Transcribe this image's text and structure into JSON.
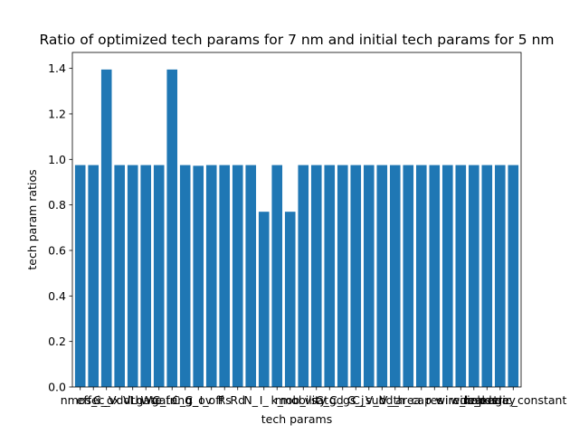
{
  "chart_data": {
    "type": "bar",
    "title": "Ratio of optimized tech params for 7 nm and initial tech params for 5 nm",
    "xlabel": "tech params",
    "ylabel": "tech param ratios",
    "ylim": [
      0,
      1.47
    ],
    "yticks": [
      0.0,
      0.2,
      0.4,
      0.6,
      0.8,
      1.0,
      1.2,
      1.4
    ],
    "ytick_labels": [
      "0.0",
      "0.2",
      "0.4",
      "0.6",
      "0.8",
      "1.0",
      "1.2",
      "1.4"
    ],
    "grid": false,
    "bar_color": "#1f77b4",
    "categories": [
      "nmos_i",
      "effec_",
      "C_ox",
      "Vdd",
      "Vth",
      "Lgate",
      "Wgate",
      "C_fring",
      "C_g_",
      "C_ov",
      "I_off",
      "Rs",
      "Rd",
      "N_",
      "I_",
      "k_",
      "mob_",
      "mobility",
      "vsat",
      "C_gd",
      "C_gs",
      "C_j",
      "C_sub",
      "V_dd_",
      "V_th_",
      "area",
      "cap",
      "res",
      "wire",
      "wire_cap",
      "wire_res",
      "leakage",
      "delay",
      "dielectric_constant"
    ],
    "values": [
      0.975,
      0.975,
      1.395,
      0.975,
      0.975,
      0.975,
      0.975,
      1.395,
      0.975,
      0.972,
      0.975,
      0.975,
      0.975,
      0.975,
      0.77,
      0.975,
      0.77,
      0.975,
      0.975,
      0.975,
      0.975,
      0.975,
      0.975,
      0.975,
      0.975,
      0.975,
      0.975,
      0.975,
      0.975,
      0.975,
      0.975,
      0.975,
      0.975,
      0.975
    ]
  }
}
